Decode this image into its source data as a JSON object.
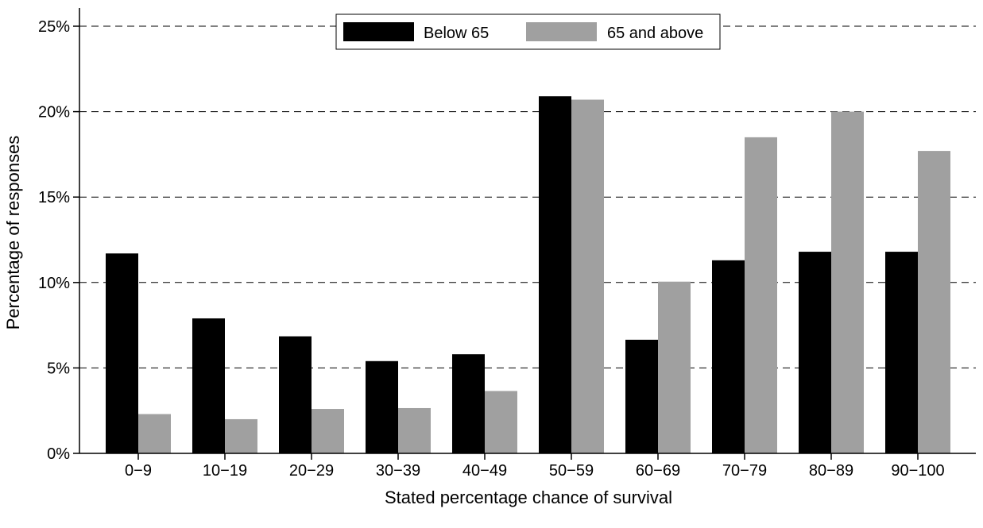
{
  "chart_data": {
    "type": "bar",
    "title": "",
    "xlabel": "Stated percentage chance of survival",
    "ylabel": "Percentage of responses",
    "categories": [
      "0−9",
      "10−19",
      "20−29",
      "30−39",
      "40−49",
      "50−59",
      "60−69",
      "70−79",
      "80−89",
      "90−100"
    ],
    "series": [
      {
        "name": "Below 65",
        "color": "#000000",
        "values": [
          11.7,
          7.9,
          6.85,
          5.4,
          5.8,
          20.9,
          6.65,
          11.3,
          11.8,
          11.8
        ]
      },
      {
        "name": "65 and above",
        "color": "#a0a0a0",
        "values": [
          2.3,
          2.0,
          2.6,
          2.65,
          3.65,
          20.7,
          10.05,
          18.5,
          20.0,
          17.7
        ]
      }
    ],
    "ylim": [
      0,
      25
    ],
    "yticks": [
      0,
      5,
      10,
      15,
      20,
      25
    ],
    "ytick_labels": [
      "0%",
      "5%",
      "10%",
      "15%",
      "20%",
      "25%"
    ],
    "grid": "horizontal dashed",
    "legend_position": "top-center"
  }
}
